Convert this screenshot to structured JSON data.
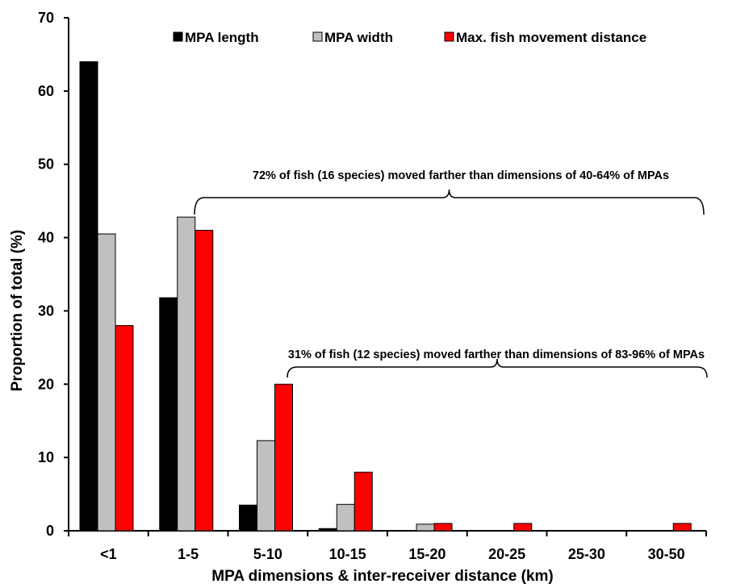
{
  "chart_data": {
    "type": "bar",
    "categories": [
      "<1",
      "1-5",
      "5-10",
      "10-15",
      "15-20",
      "20-25",
      "25-30",
      "30-50"
    ],
    "series": [
      {
        "name": "MPA length",
        "color": "#000000",
        "values": [
          64,
          31.8,
          3.5,
          0.3,
          0,
          0,
          0,
          0
        ]
      },
      {
        "name": "MPA width",
        "color": "#c0c0c0",
        "values": [
          40.5,
          42.8,
          12.3,
          3.6,
          0.9,
          0,
          0,
          0
        ]
      },
      {
        "name": "Max. fish movement distance",
        "color": "#ff0000",
        "values": [
          28,
          41,
          20,
          8,
          1,
          1,
          0,
          1
        ]
      }
    ],
    "ylim": [
      0,
      70
    ],
    "yticks": [
      "0",
      "10",
      "20",
      "30",
      "40",
      "50",
      "60",
      "70"
    ],
    "xlabel": "MPA dimensions & inter-receiver distance (km)",
    "ylabel": "Proportion of total  (%)",
    "legend_position": "top",
    "grid": false,
    "annotations": [
      {
        "text": "72% of fish (16 species) moved farther than dimensions of 40-64% of MPAs",
        "from_category": "1-5",
        "to_category": "30-50",
        "level": 40
      },
      {
        "text": "31% of fish (12 species) moved farther than dimensions of 83-96% of MPAs",
        "from_category": "5-10",
        "to_category": "30-50",
        "level": 20
      }
    ]
  }
}
